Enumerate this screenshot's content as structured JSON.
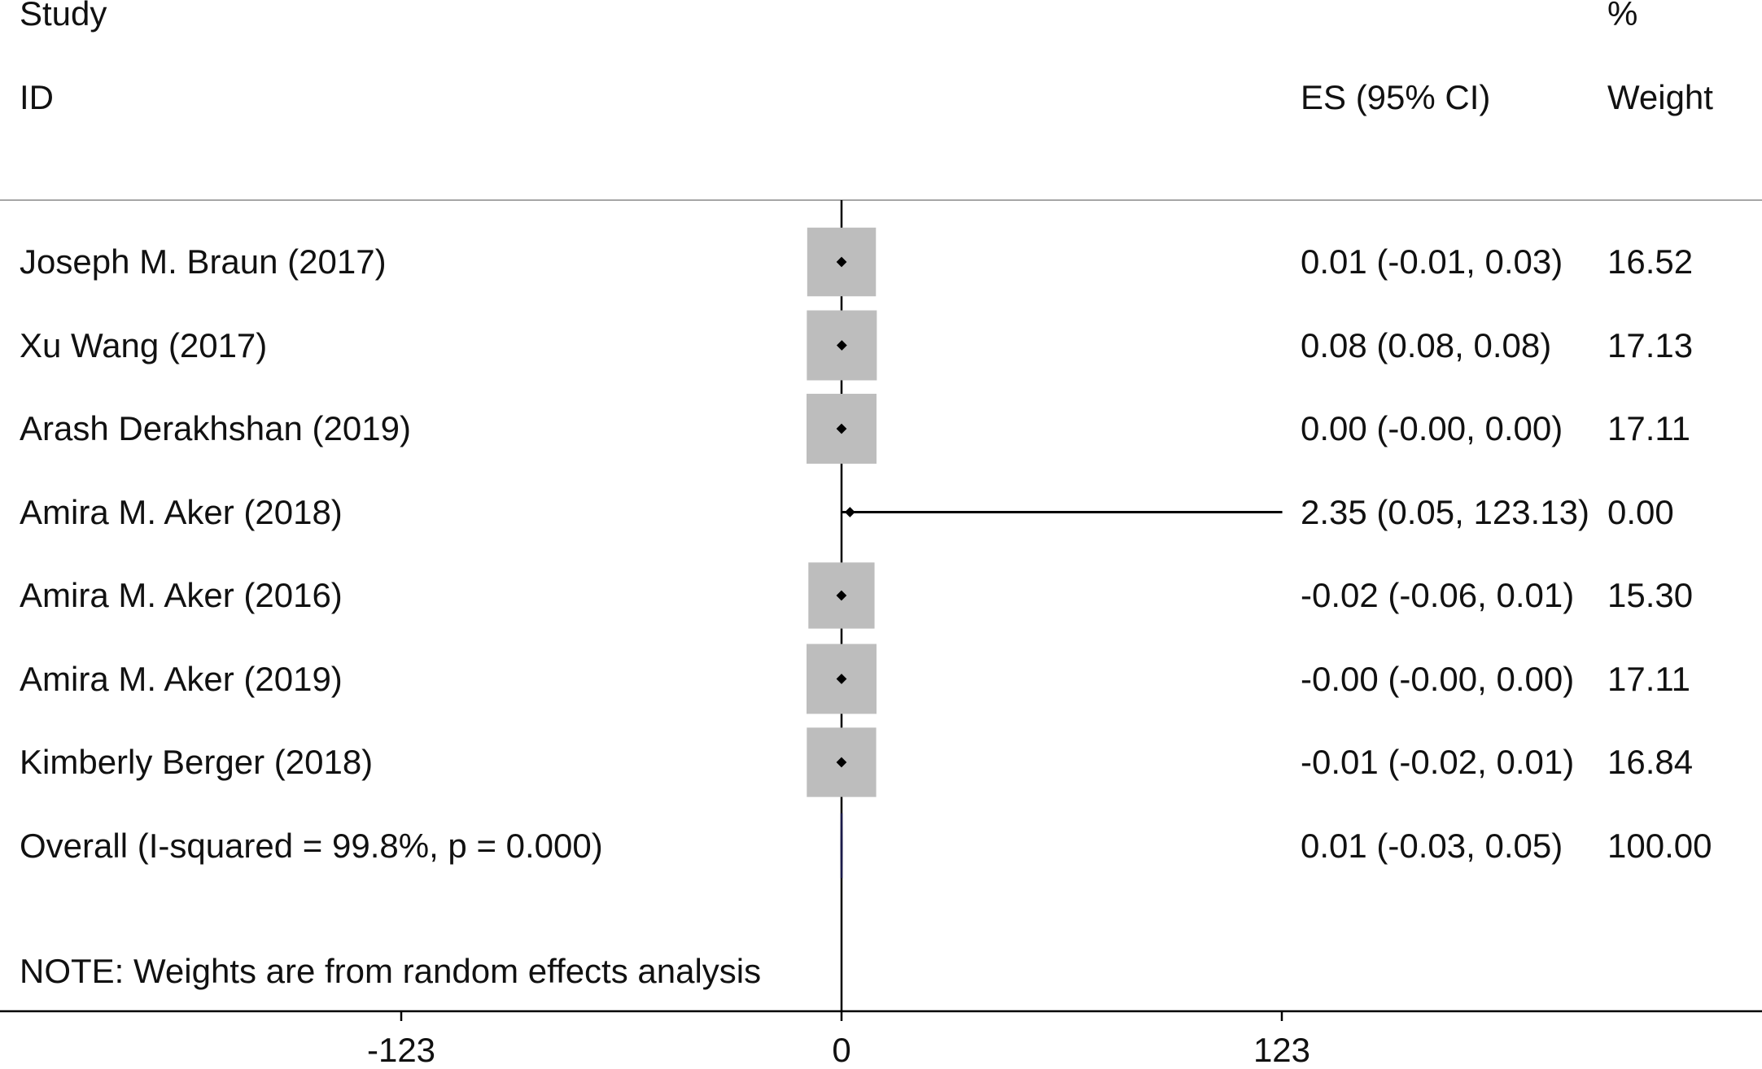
{
  "header": {
    "study": "Study",
    "id": "ID",
    "es": "ES (95% CI)",
    "pct": "%",
    "weight": "Weight"
  },
  "note": "NOTE: Weights are from random effects analysis",
  "chart_data": {
    "type": "forest",
    "x_axis": {
      "ticks": [
        -123,
        0,
        123
      ],
      "tick_labels": [
        "-123",
        "0",
        "123"
      ],
      "range": [
        -235,
        260
      ]
    },
    "null_line": 0,
    "colors": {
      "box": "#bdbdbd",
      "line": "#000000",
      "overall": "#1a1a4a",
      "separator": "#a6a6a6"
    },
    "studies": [
      {
        "name": "Joseph M. Braun (2017)",
        "es": 0.01,
        "lo": -0.01,
        "hi": 0.03,
        "es_label": "0.01 (-0.01, 0.03)",
        "weight": 16.52,
        "weight_label": "16.52"
      },
      {
        "name": "Xu Wang (2017)",
        "es": 0.08,
        "lo": 0.08,
        "hi": 0.08,
        "es_label": "0.08 (0.08, 0.08)",
        "weight": 17.13,
        "weight_label": "17.13"
      },
      {
        "name": "Arash Derakhshan (2019)",
        "es": 0.0,
        "lo": -0.0,
        "hi": 0.0,
        "es_label": "0.00 (-0.00, 0.00)",
        "weight": 17.11,
        "weight_label": "17.11"
      },
      {
        "name": "Amira M. Aker (2018)",
        "es": 2.35,
        "lo": 0.05,
        "hi": 123.13,
        "es_label": "2.35 (0.05, 123.13)",
        "weight": 0.0,
        "weight_label": "0.00"
      },
      {
        "name": "Amira M. Aker (2016)",
        "es": -0.02,
        "lo": -0.06,
        "hi": 0.01,
        "es_label": "-0.02 (-0.06, 0.01)",
        "weight": 15.3,
        "weight_label": "15.30"
      },
      {
        "name": "Amira M. Aker (2019)",
        "es": -0.0,
        "lo": -0.0,
        "hi": 0.0,
        "es_label": "-0.00 (-0.00, 0.00)",
        "weight": 17.11,
        "weight_label": "17.11"
      },
      {
        "name": "Kimberly Berger (2018)",
        "es": -0.01,
        "lo": -0.02,
        "hi": 0.01,
        "es_label": "-0.01 (-0.02, 0.01)",
        "weight": 16.84,
        "weight_label": "16.84"
      }
    ],
    "overall": {
      "name": "Overall  (I-squared = 99.8%, p = 0.000)",
      "es": 0.01,
      "lo": -0.03,
      "hi": 0.05,
      "es_label": "0.01 (-0.03, 0.05)",
      "weight": 100.0,
      "weight_label": "100.00"
    }
  }
}
